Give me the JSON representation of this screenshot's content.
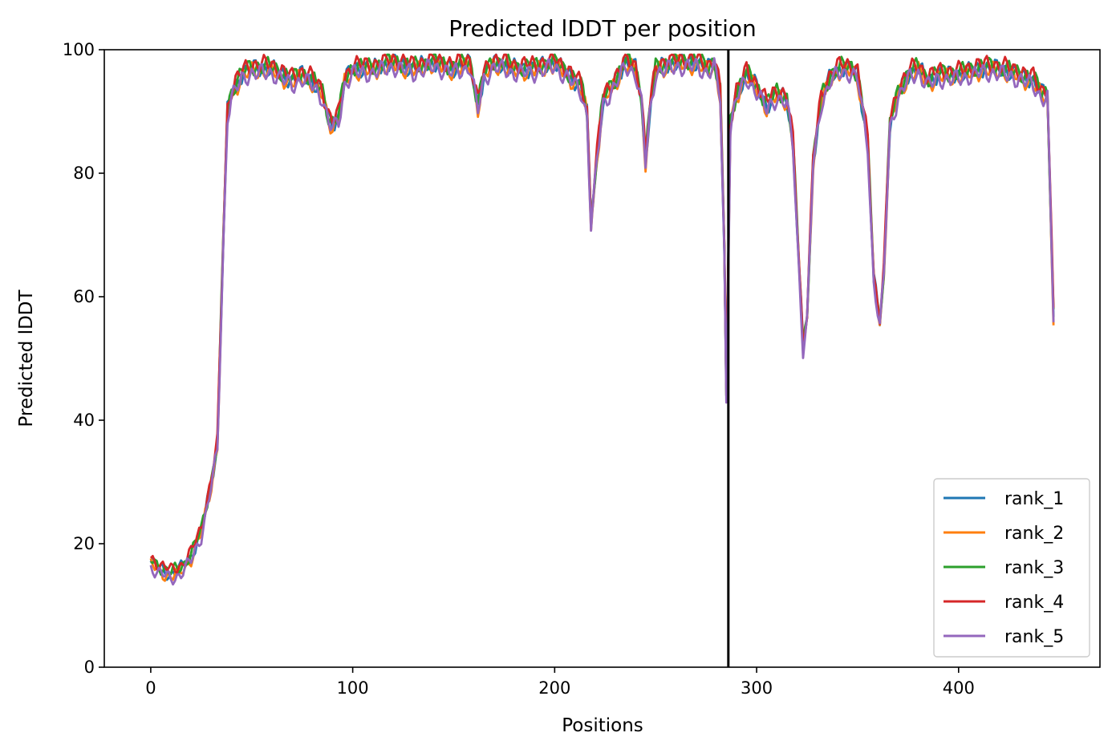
{
  "chart_data": {
    "type": "line",
    "title": "Predicted lDDT per position",
    "xlabel": "Positions",
    "ylabel": "Predicted lDDT",
    "xlim": [
      -23,
      470
    ],
    "ylim": [
      0,
      100
    ],
    "x_ticks": [
      0,
      100,
      200,
      300,
      400
    ],
    "y_ticks": [
      0,
      20,
      40,
      60,
      80,
      100
    ],
    "x_tick_labels": [
      "0",
      "100",
      "200",
      "300",
      "400"
    ],
    "y_tick_labels": [
      "0",
      "20",
      "40",
      "60",
      "80",
      "100"
    ],
    "grid": false,
    "legend_position": "lower-right",
    "vline": {
      "x": 286,
      "color": "#000000"
    },
    "n_positions": 448,
    "series": [
      {
        "name": "rank_1",
        "color": "#1f77b4",
        "offset": 0.0
      },
      {
        "name": "rank_2",
        "color": "#ff7f0e",
        "offset": -0.5
      },
      {
        "name": "rank_3",
        "color": "#2ca02c",
        "offset": 0.3
      },
      {
        "name": "rank_4",
        "color": "#d62728",
        "offset": 0.6
      },
      {
        "name": "rank_5",
        "color": "#9467bd",
        "offset": -0.8
      }
    ],
    "profile_anchors": [
      [
        0,
        17
      ],
      [
        5,
        16
      ],
      [
        10,
        15
      ],
      [
        15,
        16
      ],
      [
        20,
        18
      ],
      [
        25,
        22
      ],
      [
        30,
        30
      ],
      [
        33,
        36
      ],
      [
        36,
        70
      ],
      [
        38,
        90
      ],
      [
        40,
        93
      ],
      [
        45,
        96
      ],
      [
        50,
        97
      ],
      [
        60,
        97
      ],
      [
        65,
        96
      ],
      [
        70,
        95
      ],
      [
        75,
        96
      ],
      [
        80,
        95
      ],
      [
        85,
        93
      ],
      [
        88,
        89
      ],
      [
        90,
        88
      ],
      [
        93,
        89
      ],
      [
        96,
        95
      ],
      [
        100,
        97
      ],
      [
        110,
        97
      ],
      [
        120,
        98
      ],
      [
        130,
        97
      ],
      [
        140,
        98
      ],
      [
        150,
        97
      ],
      [
        158,
        98
      ],
      [
        162,
        91
      ],
      [
        165,
        96
      ],
      [
        170,
        98
      ],
      [
        180,
        97
      ],
      [
        190,
        97
      ],
      [
        200,
        98
      ],
      [
        207,
        96
      ],
      [
        213,
        94
      ],
      [
        216,
        90
      ],
      [
        218,
        72
      ],
      [
        221,
        83
      ],
      [
        224,
        92
      ],
      [
        230,
        95
      ],
      [
        235,
        98
      ],
      [
        240,
        97
      ],
      [
        243,
        92
      ],
      [
        245,
        82
      ],
      [
        247,
        90
      ],
      [
        250,
        97
      ],
      [
        260,
        98
      ],
      [
        270,
        98
      ],
      [
        276,
        97
      ],
      [
        279,
        98
      ],
      [
        282,
        93
      ],
      [
        284,
        68
      ],
      [
        285,
        44
      ],
      [
        287,
        88
      ],
      [
        290,
        93
      ],
      [
        295,
        96
      ],
      [
        300,
        94
      ],
      [
        305,
        91
      ],
      [
        310,
        93
      ],
      [
        315,
        92
      ],
      [
        318,
        85
      ],
      [
        321,
        65
      ],
      [
        323,
        52
      ],
      [
        325,
        57
      ],
      [
        328,
        82
      ],
      [
        332,
        92
      ],
      [
        337,
        96
      ],
      [
        342,
        97
      ],
      [
        347,
        97
      ],
      [
        350,
        96
      ],
      [
        355,
        85
      ],
      [
        358,
        63
      ],
      [
        361,
        56
      ],
      [
        363,
        64
      ],
      [
        366,
        88
      ],
      [
        370,
        93
      ],
      [
        375,
        96
      ],
      [
        380,
        97
      ],
      [
        385,
        95
      ],
      [
        390,
        96
      ],
      [
        400,
        96
      ],
      [
        410,
        97
      ],
      [
        420,
        97
      ],
      [
        430,
        96
      ],
      [
        437,
        95
      ],
      [
        441,
        93
      ],
      [
        444,
        93
      ],
      [
        447,
        57
      ]
    ]
  }
}
